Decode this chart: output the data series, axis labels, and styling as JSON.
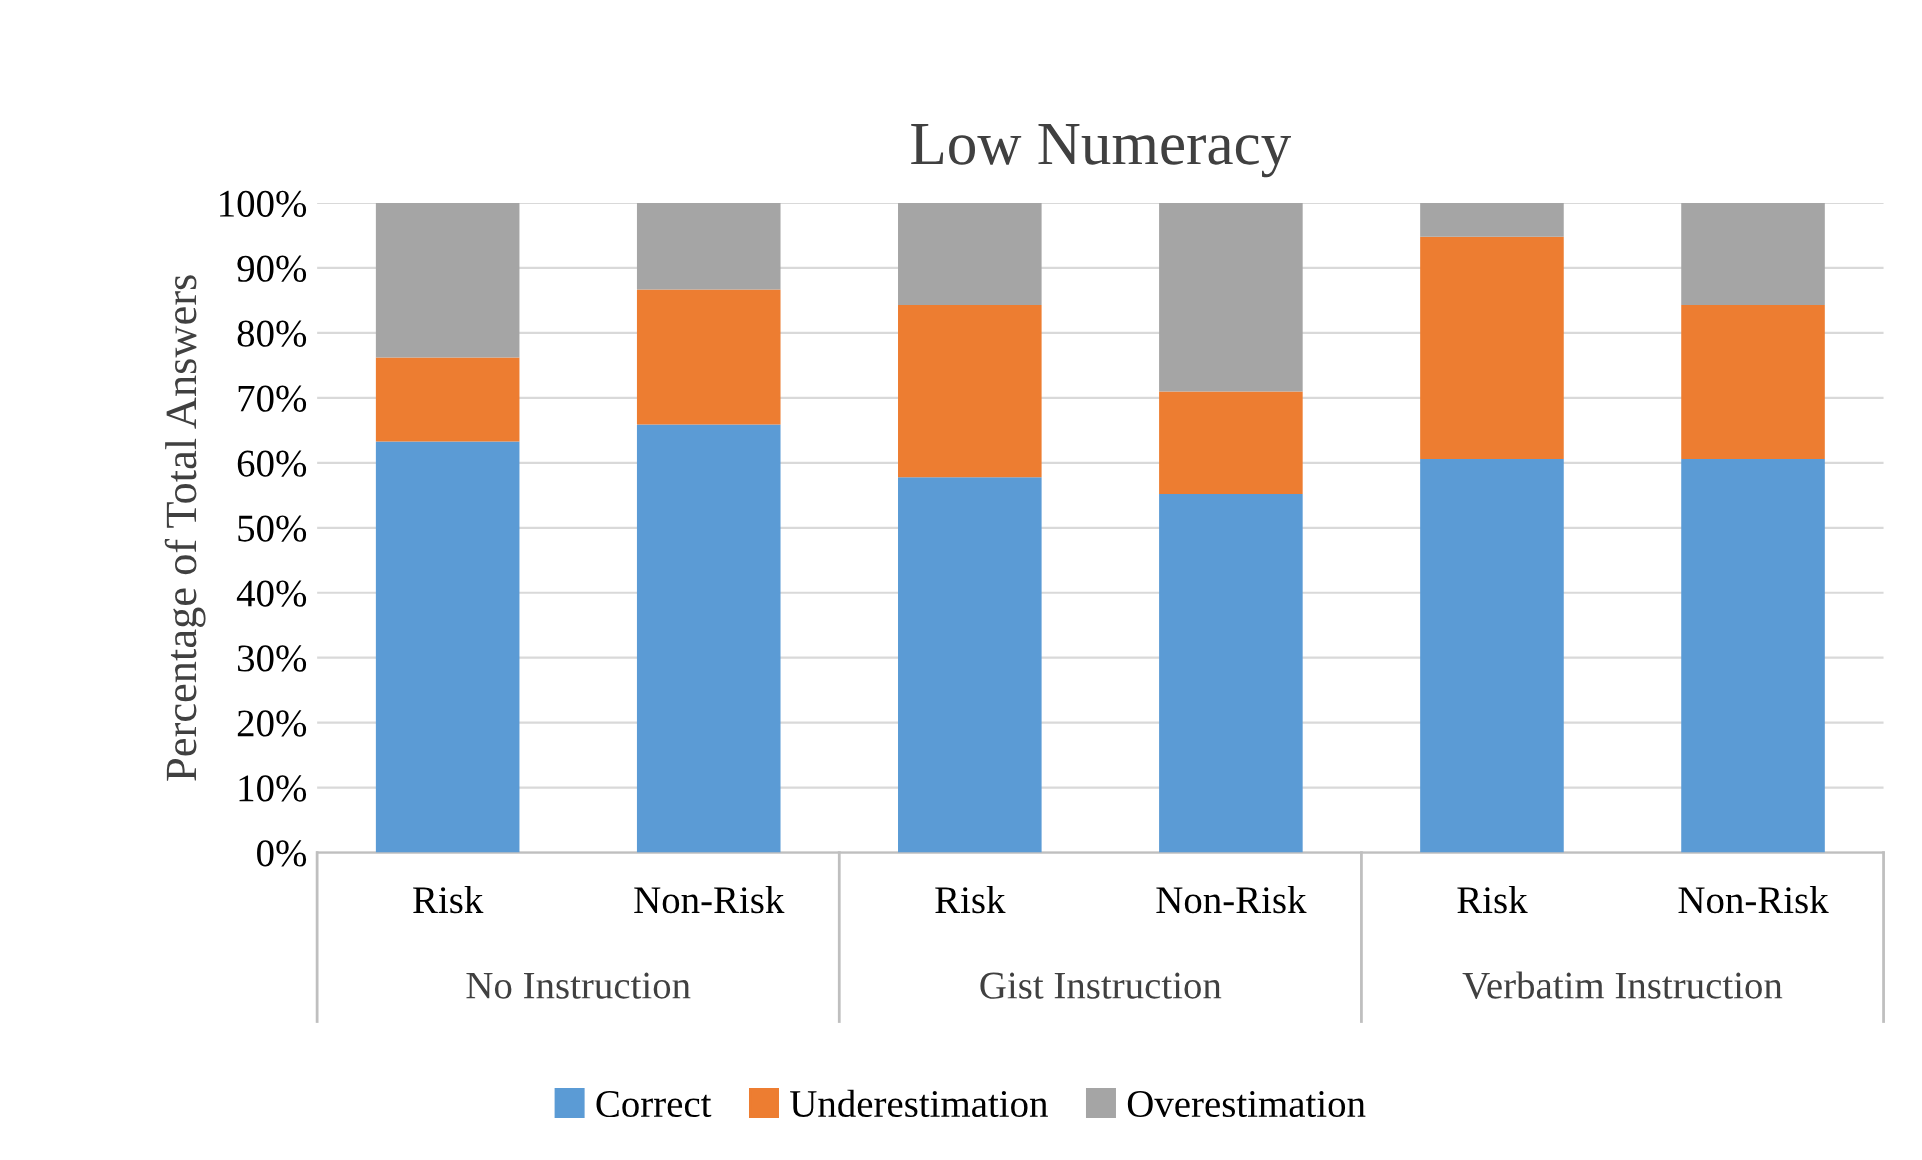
{
  "chart_data": {
    "type": "bar",
    "title": "Low Numeracy",
    "ylabel": "Percentage of Total Answers",
    "categories": [
      "Risk",
      "Non-Risk",
      "Risk",
      "Non-Risk",
      "Risk",
      "Non-Risk"
    ],
    "annotations": [
      "No Instruction",
      "Gist Instruction",
      "Verbatim Instruction"
    ],
    "stacked": true,
    "series": [
      {
        "name": "Correct",
        "color": "#5b9bd5",
        "values": [
          63.3,
          65.9,
          57.8,
          55.2,
          60.6,
          60.6
        ]
      },
      {
        "name": "Underestimation",
        "color": "#ed7d31",
        "values": [
          12.9,
          20.8,
          26.5,
          15.8,
          34.2,
          23.7
        ]
      },
      {
        "name": "Overestimation",
        "color": "#a5a5a5",
        "values": [
          23.8,
          13.3,
          15.7,
          29.0,
          5.2,
          15.7
        ]
      }
    ],
    "ylim": [
      0,
      100
    ],
    "yticks": [
      {
        "value": 0,
        "label": "0%"
      },
      {
        "value": 10,
        "label": "10%"
      },
      {
        "value": 20,
        "label": "20%"
      },
      {
        "value": 30,
        "label": "30%"
      },
      {
        "value": 40,
        "label": "40%"
      },
      {
        "value": 50,
        "label": "50%"
      },
      {
        "value": 60,
        "label": "60%"
      },
      {
        "value": 70,
        "label": "70%"
      },
      {
        "value": 80,
        "label": "80%"
      },
      {
        "value": 90,
        "label": "90%"
      },
      {
        "value": 100,
        "label": "100%"
      }
    ],
    "grid": "y",
    "legend": "bottom"
  }
}
